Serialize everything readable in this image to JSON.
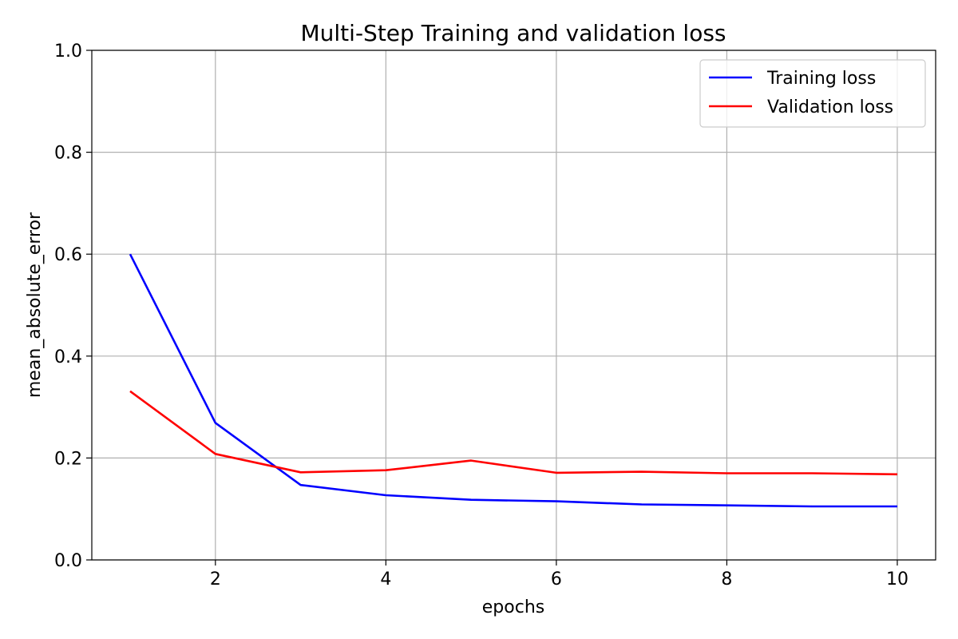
{
  "chart_data": {
    "type": "line",
    "title": "Multi-Step Training and validation loss",
    "xlabel": "epochs",
    "ylabel": "mean_absolute_error",
    "xlim": [
      0.55,
      10.45
    ],
    "ylim": [
      0.0,
      1.0
    ],
    "x_ticks": [
      2,
      4,
      6,
      8,
      10
    ],
    "y_ticks": [
      0.0,
      0.2,
      0.4,
      0.6,
      0.8,
      1.0
    ],
    "x_tick_labels": [
      "2",
      "4",
      "6",
      "8",
      "10"
    ],
    "y_tick_labels": [
      "0.0",
      "0.2",
      "0.4",
      "0.6",
      "0.8",
      "1.0"
    ],
    "grid": true,
    "legend_position": "top-right",
    "x": [
      1,
      2,
      3,
      4,
      5,
      6,
      7,
      8,
      9,
      10
    ],
    "series": [
      {
        "name": "Training loss",
        "color": "#0000ff",
        "values": [
          0.6,
          0.269,
          0.147,
          0.127,
          0.118,
          0.115,
          0.109,
          0.107,
          0.105,
          0.105
        ]
      },
      {
        "name": "Validation loss",
        "color": "#ff0000",
        "values": [
          0.331,
          0.208,
          0.172,
          0.176,
          0.195,
          0.171,
          0.173,
          0.17,
          0.17,
          0.168
        ]
      }
    ]
  }
}
